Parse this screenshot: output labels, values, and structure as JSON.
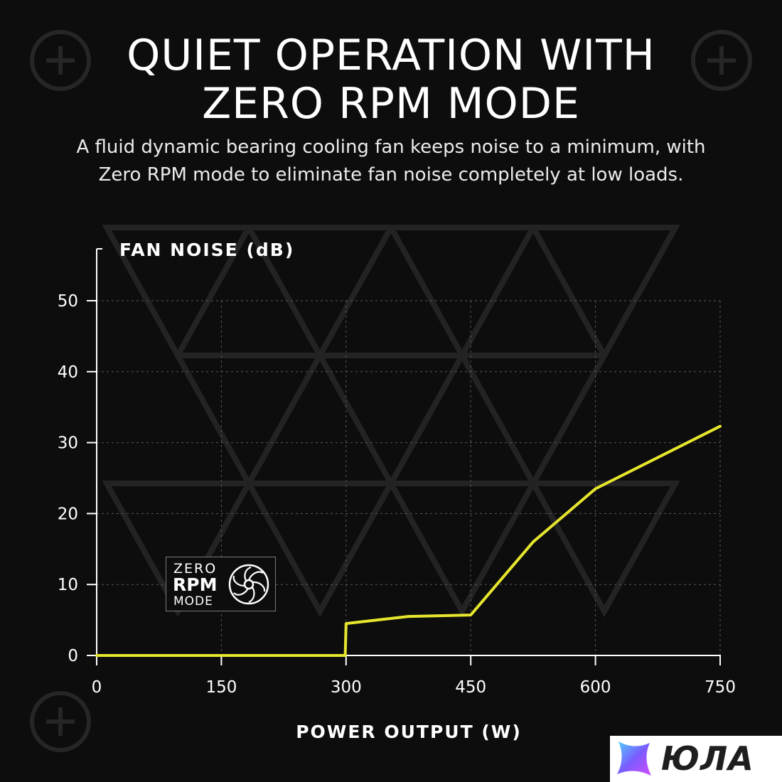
{
  "header": {
    "title_line1": "QUIET OPERATION WITH",
    "title_line2": "ZERO RPM MODE",
    "subtitle_line1": "A fluid dynamic bearing cooling fan keeps noise to a minimum, with",
    "subtitle_line2": "Zero RPM mode to eliminate fan noise completely at low loads."
  },
  "badge": {
    "line1": "ZERO",
    "line2": "RPM",
    "line3": "MODE",
    "icon": "fan-icon"
  },
  "watermark": {
    "text": "ЮЛА",
    "icon": "yula-star-logo"
  },
  "colors": {
    "background": "#0d0d0d",
    "line": "#e6e62e",
    "grid": "#5a5a5a"
  },
  "chart_data": {
    "type": "line",
    "xlabel": "POWER OUTPUT (W)",
    "ylabel": "FAN NOISE (dB)",
    "xlim": [
      0,
      750
    ],
    "ylim": [
      0,
      50
    ],
    "xticks": [
      0,
      150,
      300,
      450,
      600,
      750
    ],
    "yticks": [
      0,
      10,
      20,
      30,
      40,
      50
    ],
    "grid": true,
    "x": [
      0,
      299,
      300,
      375,
      450,
      525,
      600,
      750
    ],
    "y": [
      0,
      0,
      4.5,
      5.5,
      5.7,
      16,
      23.5,
      32.3
    ]
  }
}
